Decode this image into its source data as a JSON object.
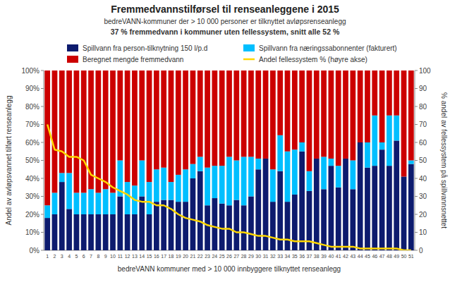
{
  "chart_data": {
    "type": "bar",
    "title": "Fremmedvannstilførsel til renseanleggene i 2015",
    "subtitle": [
      "bedreVANN-kommuner der > 10 000 personer er tilknyttet avløpsrenseanlegg",
      "37 % fremmedvann i kommuner uten fellessystem, snitt alle 52 %"
    ],
    "x_label": "bedreVANN kommuner med  > 10 000 innbyggere tilknyttet renseanlegg",
    "y_label": "Andel av avløpsvannet tilført renseanlegg",
    "y2_label": "% andel av fellessystem på spillvannsnettet",
    "stacked": true,
    "grid": false,
    "legend": "top",
    "categories": [
      "1",
      "2",
      "3",
      "4",
      "5",
      "6",
      "7",
      "8",
      "9",
      "10",
      "11",
      "12",
      "13",
      "14",
      "15",
      "16",
      "17",
      "18",
      "19",
      "20",
      "21",
      "22",
      "23",
      "24",
      "25",
      "26",
      "27",
      "28",
      "29",
      "30",
      "31",
      "32",
      "33",
      "34",
      "35",
      "36",
      "37",
      "38",
      "39",
      "40",
      "41",
      "42",
      "43",
      "44",
      "45",
      "46",
      "47",
      "48",
      "49",
      "50",
      "51"
    ],
    "series": [
      {
        "name": "Spillvann fra person-tilknytning 150 l/p.d",
        "type": "bar",
        "color": "#0D1B6E",
        "values": [
          18,
          20,
          38,
          23,
          20,
          20,
          20,
          20,
          20,
          20,
          30,
          20,
          20,
          30,
          20,
          27,
          28,
          28,
          27,
          27,
          40,
          44,
          25,
          29,
          26,
          25,
          28,
          25,
          30,
          45,
          51,
          27,
          44,
          27,
          31,
          55,
          33,
          51,
          34,
          47,
          35,
          51,
          34,
          60,
          46,
          47,
          56,
          47,
          61,
          41,
          48
        ]
      },
      {
        "name": "Spillvann fra næringssabonnenter (fakturert)",
        "type": "bar",
        "color": "#00BFFF",
        "values": [
          7,
          12,
          5,
          20,
          12,
          12,
          14,
          12,
          14,
          12,
          20,
          18,
          16,
          20,
          18,
          18,
          18,
          10,
          15,
          18,
          8,
          8,
          21,
          18,
          21,
          27,
          22,
          27,
          22,
          6,
          0,
          18,
          20,
          28,
          25,
          5,
          11,
          0,
          18,
          4,
          12,
          0,
          16,
          0,
          14,
          28,
          4,
          28,
          14,
          0,
          2
        ]
      },
      {
        "name": "Beregnet mengde fremmedvann",
        "type": "bar",
        "color": "#CC0000",
        "values": [
          75,
          68,
          57,
          57,
          68,
          68,
          66,
          68,
          66,
          68,
          50,
          62,
          64,
          50,
          62,
          55,
          54,
          62,
          58,
          55,
          52,
          48,
          54,
          53,
          53,
          48,
          50,
          48,
          48,
          49,
          49,
          55,
          36,
          45,
          44,
          40,
          56,
          49,
          48,
          49,
          53,
          49,
          50,
          40,
          40,
          25,
          40,
          25,
          25,
          59,
          50
        ]
      },
      {
        "name": "Andel fellessystem % (høyre akse)",
        "type": "line",
        "axis": "y2",
        "color": "#FFD700",
        "values": [
          70,
          56,
          55,
          52,
          52,
          50,
          42,
          40,
          38,
          35,
          33,
          31,
          28,
          27,
          27,
          25,
          25,
          23,
          20,
          18,
          17,
          16,
          14,
          13,
          12,
          12,
          10,
          10,
          9,
          8,
          8,
          7,
          6,
          6,
          5,
          5,
          5,
          4,
          3,
          2,
          2,
          2,
          2,
          1,
          1,
          1,
          1,
          1,
          1,
          0,
          0
        ]
      }
    ],
    "ylim": [
      0,
      100
    ],
    "yticks": [
      {
        "value": 0,
        "label": "0%"
      },
      {
        "value": 10,
        "label": "10%"
      },
      {
        "value": 20,
        "label": "20%"
      },
      {
        "value": 30,
        "label": "30%"
      },
      {
        "value": 40,
        "label": "40%"
      },
      {
        "value": 50,
        "label": "50%"
      },
      {
        "value": 60,
        "label": "60%"
      },
      {
        "value": 70,
        "label": "70%"
      },
      {
        "value": 80,
        "label": "80%"
      },
      {
        "value": 90,
        "label": "90%"
      },
      {
        "value": 100,
        "label": "100%"
      }
    ],
    "y2lim": [
      0,
      100
    ],
    "y2ticks": [
      0,
      10,
      20,
      30,
      40,
      50,
      60,
      70,
      80,
      90,
      100
    ]
  }
}
